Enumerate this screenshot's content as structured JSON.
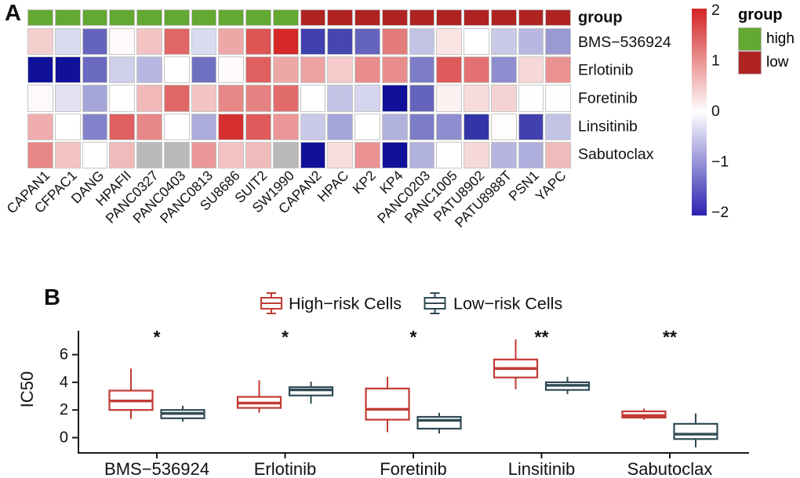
{
  "chart_data": [
    {
      "type": "heatmap",
      "title_label": "A",
      "annotation_row_label": "group",
      "rows": [
        "BMS−536924",
        "Erlotinib",
        "Foretinib",
        "Linsitinib",
        "Sabutoclax"
      ],
      "columns": [
        "CAPAN1",
        "CFPAC1",
        "DANG",
        "HPAFII",
        "PANC0327",
        "PANC0403",
        "PANC0813",
        "SU8686",
        "SUIT2",
        "SW1990",
        "CAPAN2",
        "HPAC",
        "KP2",
        "KP4",
        "PANC0203",
        "PANC1005",
        "PATU8902",
        "PATU8988T",
        "PSN1",
        "YAPC"
      ],
      "group_assignment": [
        "high",
        "high",
        "high",
        "high",
        "high",
        "high",
        "high",
        "high",
        "high",
        "high",
        "low",
        "low",
        "low",
        "low",
        "low",
        "low",
        "low",
        "low",
        "low",
        "low"
      ],
      "group_colors": {
        "high": "#63A830",
        "low": "#B02323"
      },
      "values": [
        [
          0.45,
          -0.3,
          -1.3,
          0.05,
          0.55,
          1.4,
          -0.3,
          0.8,
          1.55,
          1.95,
          -1.6,
          -1.55,
          -1.3,
          1.2,
          -0.5,
          0.25,
          0,
          -0.45,
          -0.6,
          -0.85
        ],
        [
          -2,
          -2,
          -1.25,
          -0.4,
          -0.6,
          0,
          -1.2,
          0.05,
          1.45,
          0.8,
          0.85,
          0.48,
          1.05,
          1.05,
          -1.1,
          1.5,
          1.3,
          -0.95,
          0.36,
          1.0
        ],
        [
          0.05,
          -0.25,
          -0.75,
          0,
          0.65,
          1.4,
          0.55,
          1.1,
          1.15,
          1.35,
          0,
          -0.5,
          -0.35,
          -2,
          -1.3,
          0.12,
          0.33,
          0.4,
          0.02,
          0.02
        ],
        [
          0.75,
          0,
          -1.05,
          1.45,
          1.1,
          0,
          -0.7,
          1.9,
          1.5,
          0.95,
          -0.45,
          -0.75,
          0,
          -0.65,
          -1.1,
          -0.95,
          -1.7,
          0.03,
          -1.6,
          -0.5
        ],
        [
          1.1,
          0.55,
          0,
          0.62,
          null,
          null,
          0.95,
          0.55,
          0.62,
          null,
          -2,
          0.3,
          1.0,
          -2,
          -0.65,
          0,
          0.35,
          -0.62,
          -0.68,
          0.62
        ]
      ],
      "value_range": [
        -2,
        2
      ],
      "na_color": "#B9B9B9",
      "scale_colors": {
        "negative": "#10109A",
        "zero": "#FFFFFF",
        "positive": "#D42424"
      },
      "colorbar": {
        "ticks": [
          "2",
          "1",
          "0",
          "−1",
          "−2"
        ],
        "tick_values": [
          2,
          1,
          0,
          -1,
          -2
        ],
        "bottom_color": "#2B21B0"
      },
      "legend": {
        "title": "group",
        "items": [
          {
            "label": "high",
            "color": "#63A830"
          },
          {
            "label": "low",
            "color": "#B02323"
          }
        ]
      }
    },
    {
      "type": "boxplot",
      "title_label": "B",
      "ylabel": "IC50",
      "yticks": [
        "0",
        "2",
        "4",
        "6"
      ],
      "ytick_values": [
        0,
        2,
        4,
        6
      ],
      "categories": [
        "BMS−536924",
        "Erlotinib",
        "Foretinib",
        "Linsitinib",
        "Sabutoclax"
      ],
      "significance": [
        "*",
        "*",
        "*",
        "**",
        "**"
      ],
      "series": [
        {
          "name": "High−risk Cells",
          "color": "#C13B34",
          "boxes": [
            {
              "whisker_low": 1.35,
              "q1": 2.0,
              "median": 2.65,
              "q3": 3.4,
              "whisker_high": 5.0
            },
            {
              "whisker_low": 1.8,
              "q1": 2.15,
              "median": 2.5,
              "q3": 2.95,
              "whisker_high": 4.15
            },
            {
              "whisker_low": 0.4,
              "q1": 1.3,
              "median": 2.05,
              "q3": 3.55,
              "whisker_high": 4.4
            },
            {
              "whisker_low": 3.5,
              "q1": 4.35,
              "median": 5.0,
              "q3": 5.65,
              "whisker_high": 7.1
            },
            {
              "whisker_low": 1.3,
              "q1": 1.45,
              "median": 1.6,
              "q3": 1.9,
              "whisker_high": 2.1
            }
          ]
        },
        {
          "name": "Low−risk Cells",
          "color": "#2E4A55",
          "boxes": [
            {
              "whisker_low": 1.15,
              "q1": 1.4,
              "median": 1.75,
              "q3": 2.0,
              "whisker_high": 2.3
            },
            {
              "whisker_low": 2.45,
              "q1": 3.05,
              "median": 3.45,
              "q3": 3.65,
              "whisker_high": 4.05
            },
            {
              "whisker_low": 0.3,
              "q1": 0.65,
              "median": 1.25,
              "q3": 1.5,
              "whisker_high": 1.8
            },
            {
              "whisker_low": 3.15,
              "q1": 3.45,
              "median": 3.78,
              "q3": 4.0,
              "whisker_high": 4.4
            },
            {
              "whisker_low": -0.7,
              "q1": -0.1,
              "median": 0.25,
              "q3": 1.0,
              "whisker_high": 1.75
            }
          ]
        }
      ]
    }
  ]
}
